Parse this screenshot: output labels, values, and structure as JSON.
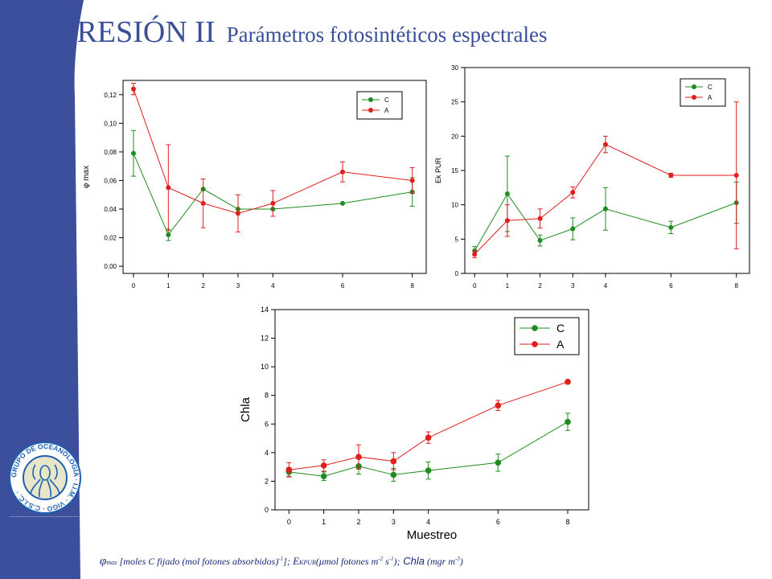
{
  "title": {
    "main": "IMPRESIÓN II",
    "subtitle": "Parámetros fotosintéticos espectrales"
  },
  "caption": {
    "phi_symbol": "φ",
    "phi_sub": "max",
    "phi_units": " [moles C fijado (mol fotones absorbidos)",
    "phi_exp": "-1",
    "phi_close": "];",
    "ek_symbol": " E",
    "ek_sub": "KPUR",
    "ek_units_a": "(μmol fotones m",
    "ek_exp1": "-2",
    "ek_units_b": " s",
    "ek_exp2": "-1",
    "ek_units_c": ");",
    "chla_label": " Chla",
    "chla_units_a": " (mgr m",
    "chla_exp": "-3",
    "chla_units_b": ")"
  },
  "logo": {
    "ring_text": "GRUPO DE OCEANOLOGÍA · I.I.M. · VIGO · C.S.I.C. ·",
    "colors": {
      "ring": "#1e5fb0",
      "text": "#1e5fb0",
      "fill": "#e8e6c9"
    }
  },
  "colors": {
    "stripe": "#3b4f9c",
    "title": "#3a4f9a",
    "series_C": "#1e8c1e",
    "series_A": "#e01e1e"
  },
  "chart_data": [
    {
      "id": "phi",
      "type": "line",
      "xlabel": "",
      "ylabel": "φ max",
      "x": [
        0,
        1,
        2,
        3,
        4,
        6,
        8
      ],
      "xticks": [
        "0",
        "1",
        "2",
        "3",
        "4",
        "6",
        "8"
      ],
      "xlim": [
        -0.3,
        8.4
      ],
      "ylim": [
        -0.005,
        0.13
      ],
      "yticks": [
        "0,00",
        "0,02",
        "0,04",
        "0,06",
        "0,08",
        "0,10",
        "0,12"
      ],
      "ytick_values": [
        0,
        0.02,
        0.04,
        0.06,
        0.08,
        0.1,
        0.12
      ],
      "legend_position": "top-right",
      "legend_size": "small",
      "series": [
        {
          "name": "C",
          "color": "#1e8c1e",
          "values": [
            0.079,
            0.022,
            0.054,
            0.04,
            0.04,
            0.044,
            0.052
          ],
          "err": [
            0.016,
            0.004,
            0.0,
            0.0,
            0.0,
            0.0,
            0.01
          ]
        },
        {
          "name": "A",
          "color": "#e01e1e",
          "values": [
            0.124,
            0.055,
            0.044,
            0.037,
            0.044,
            0.066,
            0.06
          ],
          "err": [
            0.004,
            0.03,
            0.017,
            0.013,
            0.009,
            0.007,
            0.009
          ]
        }
      ]
    },
    {
      "id": "ek",
      "type": "line",
      "xlabel": "",
      "ylabel": "Ek PUR",
      "x": [
        0,
        1,
        2,
        3,
        4,
        6,
        8
      ],
      "xticks": [
        "0",
        "1",
        "2",
        "3",
        "4",
        "6",
        "8"
      ],
      "xlim": [
        -0.3,
        8.4
      ],
      "ylim": [
        0,
        30
      ],
      "yticks": [
        "0",
        "5",
        "10",
        "15",
        "20",
        "25",
        "30"
      ],
      "ytick_values": [
        0,
        5,
        10,
        15,
        20,
        25,
        30
      ],
      "legend_position": "top-right",
      "legend_size": "small",
      "series": [
        {
          "name": "C",
          "color": "#1e8c1e",
          "values": [
            3.3,
            11.6,
            4.8,
            6.5,
            9.4,
            6.7,
            10.3
          ],
          "err": [
            0.6,
            5.5,
            0.8,
            1.6,
            3.1,
            0.9,
            3.0
          ]
        },
        {
          "name": "A",
          "color": "#e01e1e",
          "values": [
            2.8,
            7.7,
            8.0,
            11.8,
            18.8,
            14.3,
            14.3
          ],
          "err": [
            0.5,
            2.3,
            1.4,
            0.8,
            1.2,
            0.3,
            10.7
          ]
        }
      ]
    },
    {
      "id": "chla",
      "type": "line",
      "xlabel": "Muestreo",
      "ylabel": "Chla",
      "x": [
        0,
        1,
        2,
        3,
        4,
        6,
        8
      ],
      "xticks": [
        "0",
        "1",
        "2",
        "3",
        "4",
        "6",
        "8"
      ],
      "xlim": [
        -0.4,
        8.6
      ],
      "ylim": [
        0,
        14
      ],
      "yticks": [
        "0",
        "2",
        "4",
        "6",
        "8",
        "10",
        "12",
        "14"
      ],
      "ytick_values": [
        0,
        2,
        4,
        6,
        8,
        10,
        12,
        14
      ],
      "legend_position": "top-right",
      "legend_size": "large",
      "series": [
        {
          "name": "C",
          "color": "#1e8c1e",
          "values": [
            2.65,
            2.35,
            3.05,
            2.45,
            2.75,
            3.3,
            6.15
          ],
          "err": [
            0.3,
            0.3,
            0.55,
            0.45,
            0.6,
            0.6,
            0.6
          ]
        },
        {
          "name": "A",
          "color": "#e01e1e",
          "values": [
            2.8,
            3.1,
            3.7,
            3.4,
            5.05,
            7.3,
            8.95
          ],
          "err": [
            0.5,
            0.4,
            0.85,
            0.6,
            0.4,
            0.35,
            0.1
          ]
        }
      ]
    }
  ]
}
